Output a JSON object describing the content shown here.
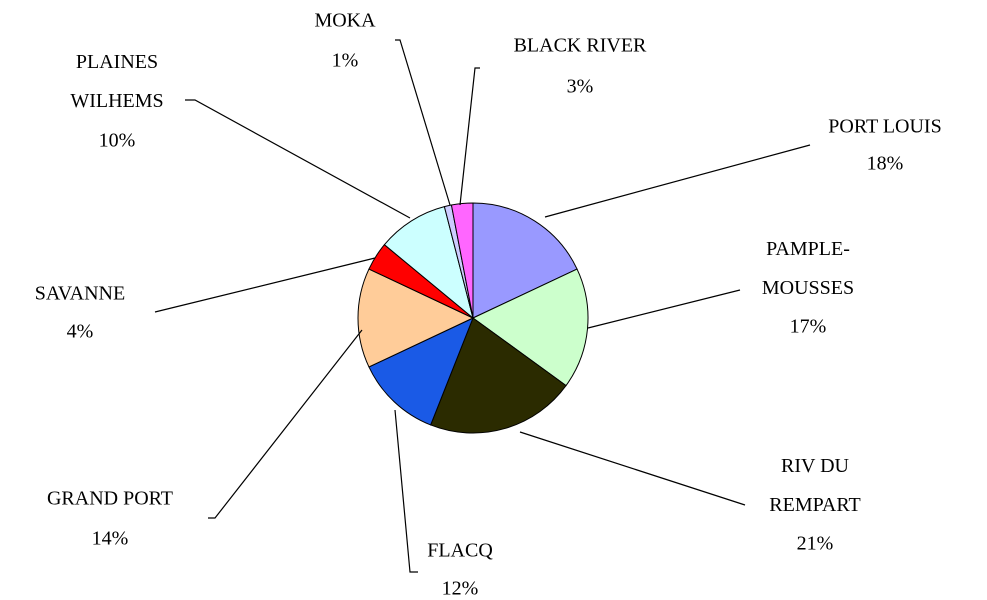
{
  "chart_data": {
    "type": "pie",
    "categories": [
      "PORT LOUIS",
      "PAMPLE-\nMOUSSES",
      "RIV DU\nREMPART",
      "FLACQ",
      "GRAND PORT",
      "SAVANNE",
      "PLAINES\nWILHEMS",
      "MOKA",
      "BLACK RIVER"
    ],
    "values": [
      18,
      17,
      21,
      12,
      14,
      4,
      10,
      1,
      3
    ],
    "value_labels": [
      "18%",
      "17%",
      "21%",
      "12%",
      "14%",
      "4%",
      "10%",
      "1%",
      "3%"
    ],
    "colors": [
      "#9999ff",
      "#ccffcc",
      "#2b2b00",
      "#1a5ae6",
      "#ffcc99",
      "#ff0000",
      "#ccffff",
      "#ccccff",
      "#ff66ff"
    ]
  }
}
